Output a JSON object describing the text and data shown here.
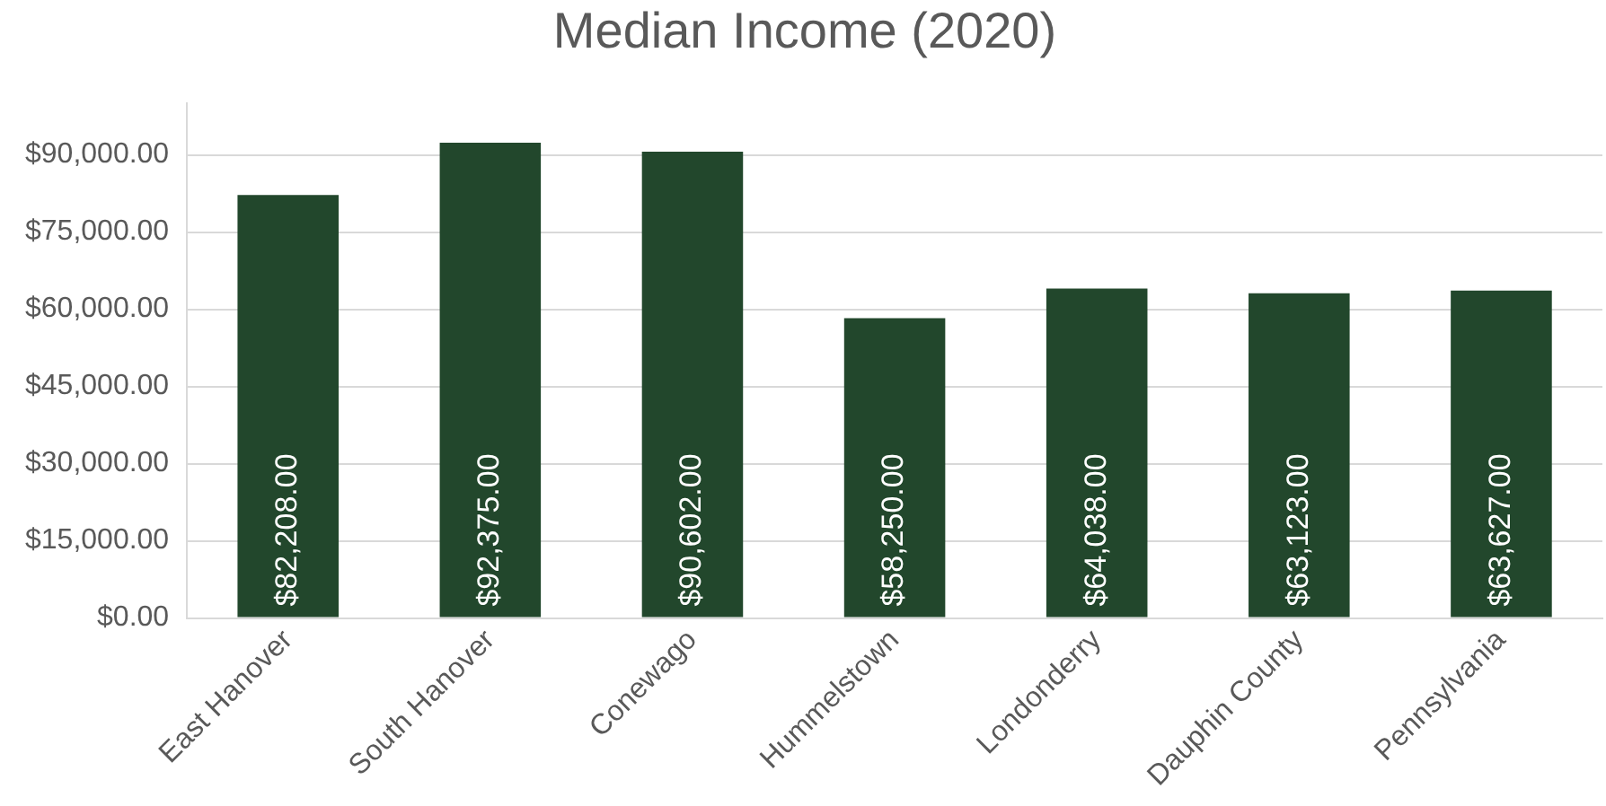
{
  "chart_data": {
    "type": "bar",
    "title": "Median Income (2020)",
    "categories": [
      "East Hanover",
      "South Hanover",
      "Conewago",
      "Hummelstown",
      "Londonderry",
      "Dauphin County",
      "Pennsylvania"
    ],
    "values": [
      82208,
      92375,
      90602,
      58250,
      64038,
      63123,
      63627
    ],
    "value_labels": [
      "$82,208.00",
      "$92,375.00",
      "$90,602.00",
      "$58,250.00",
      "$64,038.00",
      "$63,123.00",
      "$63,627.00"
    ],
    "color": "#22472c",
    "ylim": [
      0,
      100000
    ],
    "yticks": [
      {
        "value": 0,
        "label": "$0.00"
      },
      {
        "value": 15000,
        "label": "$15,000.00"
      },
      {
        "value": 30000,
        "label": "$30,000.00"
      },
      {
        "value": 45000,
        "label": "$45,000.00"
      },
      {
        "value": 60000,
        "label": "$60,000.00"
      },
      {
        "value": 75000,
        "label": "$75,000.00"
      },
      {
        "value": 90000,
        "label": "$90,000.00"
      }
    ],
    "grid": "y",
    "legend": false
  }
}
